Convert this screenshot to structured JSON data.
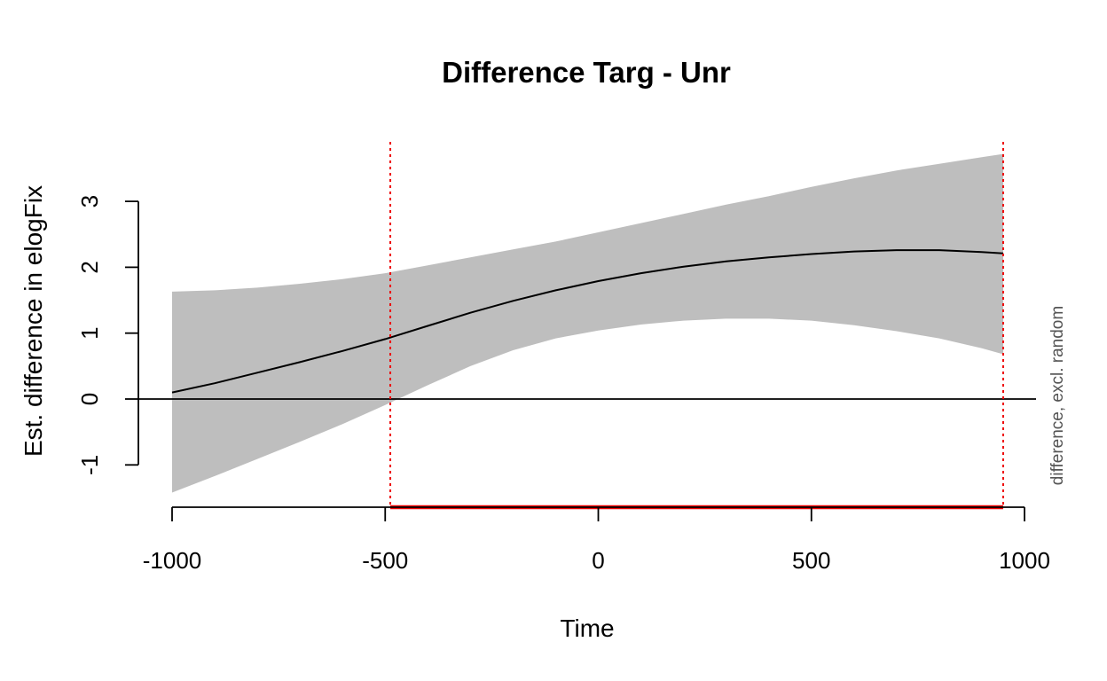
{
  "chart_data": {
    "type": "line",
    "title": "Difference Targ - Unr",
    "xlabel": "Time",
    "ylabel": "Est. difference in elogFix",
    "side_note": "difference, excl. random",
    "xlim": [
      -1000,
      1000
    ],
    "ylim": [
      -1.5,
      3.5
    ],
    "x_ticks": [
      -1000,
      -500,
      0,
      500,
      1000
    ],
    "y_ticks": [
      -1,
      0,
      1,
      2,
      3
    ],
    "reference_line_y": 0,
    "series": [
      {
        "x": [
          -1000,
          -900,
          -800,
          -700,
          -600,
          -500,
          -400,
          -300,
          -200,
          -100,
          0,
          100,
          200,
          300,
          400,
          500,
          600,
          700,
          800,
          900,
          950
        ],
        "y": [
          0.1,
          0.24,
          0.4,
          0.56,
          0.73,
          0.91,
          1.11,
          1.31,
          1.49,
          1.65,
          1.79,
          1.91,
          2.01,
          2.09,
          2.15,
          2.2,
          2.24,
          2.26,
          2.26,
          2.23,
          2.21
        ],
        "lower": [
          -1.42,
          -1.17,
          -0.91,
          -0.65,
          -0.38,
          -0.09,
          0.21,
          0.5,
          0.74,
          0.92,
          1.04,
          1.13,
          1.19,
          1.22,
          1.22,
          1.19,
          1.12,
          1.03,
          0.92,
          0.77,
          0.68
        ],
        "upper": [
          1.63,
          1.65,
          1.69,
          1.75,
          1.82,
          1.91,
          2.03,
          2.15,
          2.27,
          2.39,
          2.53,
          2.67,
          2.81,
          2.95,
          3.08,
          3.22,
          3.35,
          3.47,
          3.57,
          3.67,
          3.72
        ]
      }
    ],
    "significant_interval": [
      -488,
      950
    ],
    "colors": {
      "line": "#000000",
      "ci_band": "#bebebe",
      "significant": "#ee0000"
    }
  }
}
